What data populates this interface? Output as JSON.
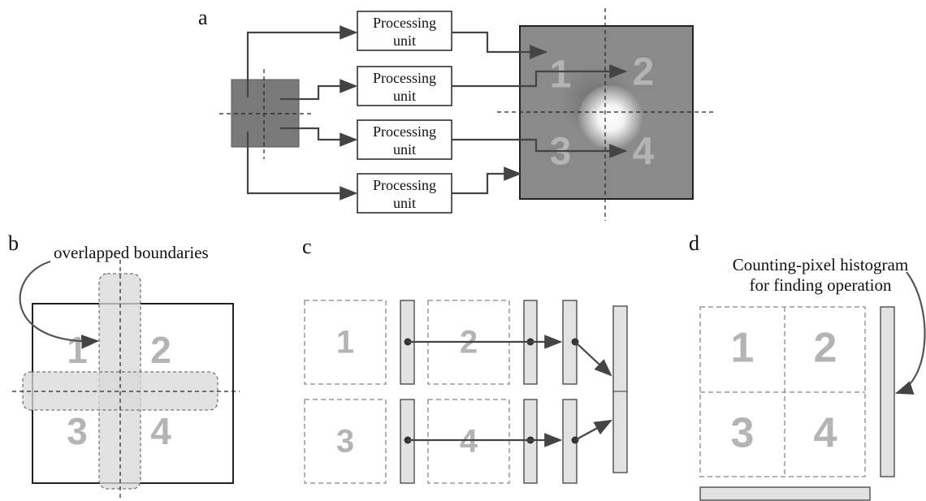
{
  "panels": {
    "a": {
      "label": "a",
      "units": [
        [
          "Processing",
          "unit"
        ],
        [
          "Processing",
          "unit"
        ],
        [
          "Processing",
          "unit"
        ],
        [
          "Processing",
          "unit"
        ]
      ],
      "quadrants": [
        "1",
        "2",
        "3",
        "4"
      ]
    },
    "b": {
      "label": "b",
      "annotation": "overlapped boundaries",
      "quadrants": [
        "1",
        "2",
        "3",
        "4"
      ]
    },
    "c": {
      "label": "c",
      "quadrants": [
        "1",
        "2",
        "3",
        "4"
      ]
    },
    "d": {
      "label": "d",
      "annotation": [
        "Counting-pixel histogram",
        "for finding operation"
      ],
      "quadrants": [
        "1",
        "2",
        "3",
        "4"
      ]
    }
  }
}
